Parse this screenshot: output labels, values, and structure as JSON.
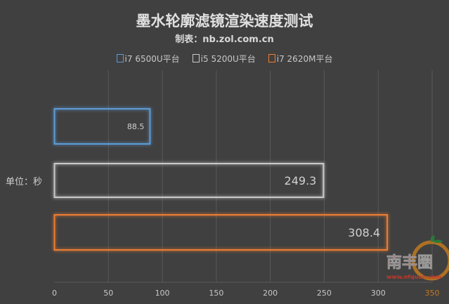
{
  "chart_data": {
    "type": "bar",
    "orientation": "horizontal",
    "title": "墨水轮廓滤镜渲染速度测试",
    "subtitle": "制表：nb.zol.com.cn",
    "unit_label": "单位：秒",
    "categories": [
      "i7 6500U平台",
      "i5 5200U平台",
      "i7 2620M平台"
    ],
    "values": [
      88.5,
      249.3,
      308.4
    ],
    "value_labels": [
      "88.5",
      "249.3",
      "308.4"
    ],
    "colors": [
      "#5b9bd5",
      "#c8c8c8",
      "#ed7d31"
    ],
    "xlim": [
      0,
      350
    ],
    "xticks": [
      0,
      50,
      100,
      150,
      200,
      250,
      300,
      350
    ],
    "grid": true,
    "legend_position": "top"
  },
  "watermark": {
    "name": "南丰圈",
    "url": "www.nfquan.com"
  }
}
